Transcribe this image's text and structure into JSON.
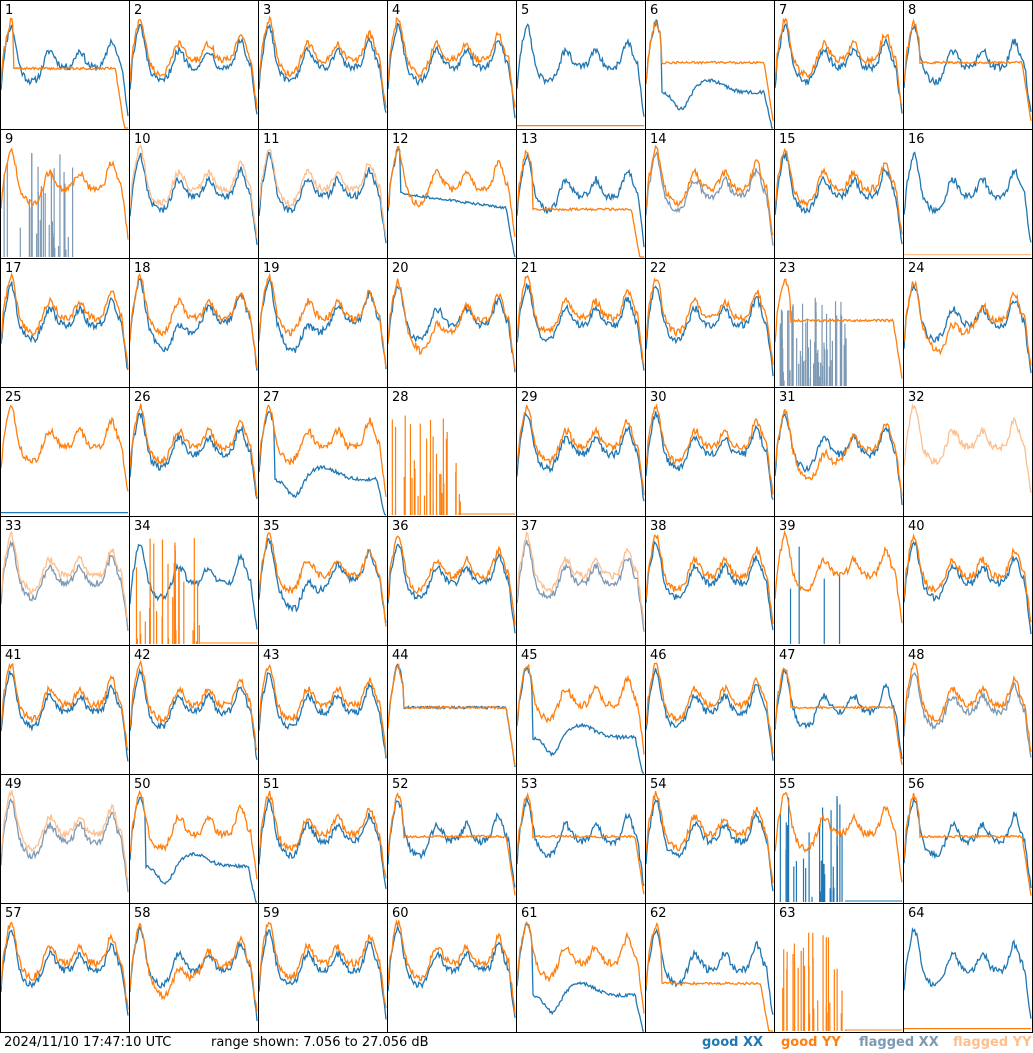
{
  "chart_data": {
    "type": "line",
    "panels": [
      "1",
      "2",
      "3",
      "4",
      "5",
      "6",
      "7",
      "8",
      "9",
      "10",
      "11",
      "12",
      "13",
      "14",
      "15",
      "16",
      "17",
      "18",
      "19",
      "20",
      "21",
      "22",
      "23",
      "24",
      "25",
      "26",
      "27",
      "28",
      "29",
      "30",
      "31",
      "32",
      "33",
      "34",
      "35",
      "36",
      "37",
      "38",
      "39",
      "40",
      "41",
      "42",
      "43",
      "44",
      "45",
      "46",
      "47",
      "48",
      "49",
      "50",
      "51",
      "52",
      "53",
      "54",
      "55",
      "56",
      "57",
      "58",
      "59",
      "60",
      "61",
      "62",
      "63",
      "64"
    ],
    "grid": "8x8",
    "ylim": [
      7.056,
      27.056
    ],
    "series": [
      {
        "name": "good XX",
        "color": "#1f77b4"
      },
      {
        "name": "good YY",
        "color": "#ff7f0e"
      },
      {
        "name": "flagged XX",
        "color": "#7d99b4"
      },
      {
        "name": "flagged YY",
        "color": "#fdbf8e"
      }
    ],
    "panel_modes": {
      "1": {
        "xx": "normal",
        "yy": "sag_drop"
      },
      "2": {
        "xx": "normal",
        "yy": "normal"
      },
      "3": {
        "xx": "normal",
        "yy": "normal"
      },
      "4": {
        "xx": "normal",
        "yy": "normal"
      },
      "5": {
        "xx": "normal",
        "yy": "low"
      },
      "6": {
        "xx": "deep",
        "yy": "flat"
      },
      "7": {
        "xx": "normal",
        "yy": "normal"
      },
      "8": {
        "xx": "normal",
        "yy": "flat"
      },
      "9": {
        "xx": "flagged_spikes",
        "yy": "normal"
      },
      "10": {
        "xx": "normal",
        "yy": "flagged"
      },
      "11": {
        "xx": "normal",
        "yy": "flagged"
      },
      "12": {
        "xx": "drooping",
        "yy": "normal"
      },
      "13": {
        "xx": "normal",
        "yy": "flat_drop"
      },
      "14": {
        "xx": "flagged",
        "yy": "normal"
      },
      "15": {
        "xx": "normal",
        "yy": "normal"
      },
      "16": {
        "xx": "normal",
        "yy": "flagged_low"
      },
      "17": {
        "xx": "normal",
        "yy": "normal"
      },
      "18": {
        "xx": "sag",
        "yy": "normal"
      },
      "19": {
        "xx": "sag",
        "yy": "normal"
      },
      "20": {
        "xx": "normal",
        "yy": "sag"
      },
      "21": {
        "xx": "normal",
        "yy": "normal"
      },
      "22": {
        "xx": "normal",
        "yy": "normal"
      },
      "23": {
        "xx": "flagged_noise",
        "yy": "flat"
      },
      "24": {
        "xx": "normal",
        "yy": "sag"
      },
      "25": {
        "xx": "low",
        "yy": "normal"
      },
      "26": {
        "xx": "normal",
        "yy": "normal"
      },
      "27": {
        "xx": "deep",
        "yy": "normal"
      },
      "28": {
        "xx": "none",
        "yy": "spikes"
      },
      "29": {
        "xx": "normal",
        "yy": "normal"
      },
      "30": {
        "xx": "normal",
        "yy": "normal"
      },
      "31": {
        "xx": "normal",
        "yy": "sag"
      },
      "32": {
        "xx": "none",
        "yy": "flagged"
      },
      "33": {
        "xx": "flagged",
        "yy": "flagged"
      },
      "34": {
        "xx": "normal",
        "yy": "spikes"
      },
      "35": {
        "xx": "sag",
        "yy": "normal"
      },
      "36": {
        "xx": "normal",
        "yy": "normal"
      },
      "37": {
        "xx": "flagged",
        "yy": "flagged"
      },
      "38": {
        "xx": "normal",
        "yy": "normal"
      },
      "39": {
        "xx": "low_spike",
        "yy": "normal"
      },
      "40": {
        "xx": "normal",
        "yy": "normal"
      },
      "41": {
        "xx": "normal",
        "yy": "normal"
      },
      "42": {
        "xx": "normal",
        "yy": "normal"
      },
      "43": {
        "xx": "normal",
        "yy": "normal"
      },
      "44": {
        "xx": "flat",
        "yy": "flat"
      },
      "45": {
        "xx": "deep",
        "yy": "normal"
      },
      "46": {
        "xx": "normal",
        "yy": "normal"
      },
      "47": {
        "xx": "normal",
        "yy": "flat"
      },
      "48": {
        "xx": "flagged",
        "yy": "normal"
      },
      "49": {
        "xx": "flagged",
        "yy": "flagged"
      },
      "50": {
        "xx": "deep",
        "yy": "normal"
      },
      "51": {
        "xx": "normal",
        "yy": "normal"
      },
      "52": {
        "xx": "normal",
        "yy": "flat"
      },
      "53": {
        "xx": "normal",
        "yy": "flat"
      },
      "54": {
        "xx": "normal",
        "yy": "normal"
      },
      "55": {
        "xx": "spikes",
        "yy": "normal"
      },
      "56": {
        "xx": "normal",
        "yy": "flat"
      },
      "57": {
        "xx": "normal",
        "yy": "normal"
      },
      "58": {
        "xx": "normal",
        "yy": "sag"
      },
      "59": {
        "xx": "normal",
        "yy": "normal"
      },
      "60": {
        "xx": "normal",
        "yy": "normal"
      },
      "61": {
        "xx": "deep",
        "yy": "normal"
      },
      "62": {
        "xx": "normal",
        "yy": "flat_drop"
      },
      "63": {
        "xx": "none",
        "yy": "spikes"
      },
      "64": {
        "xx": "normal",
        "yy": "low"
      }
    }
  },
  "footer": {
    "timestamp": "2024/11/10 17:47:10 UTC",
    "range": "range shown: 7.056 to 27.056 dB",
    "legend": [
      "good XX",
      "good YY",
      "flagged XX",
      "flagged YY"
    ]
  }
}
